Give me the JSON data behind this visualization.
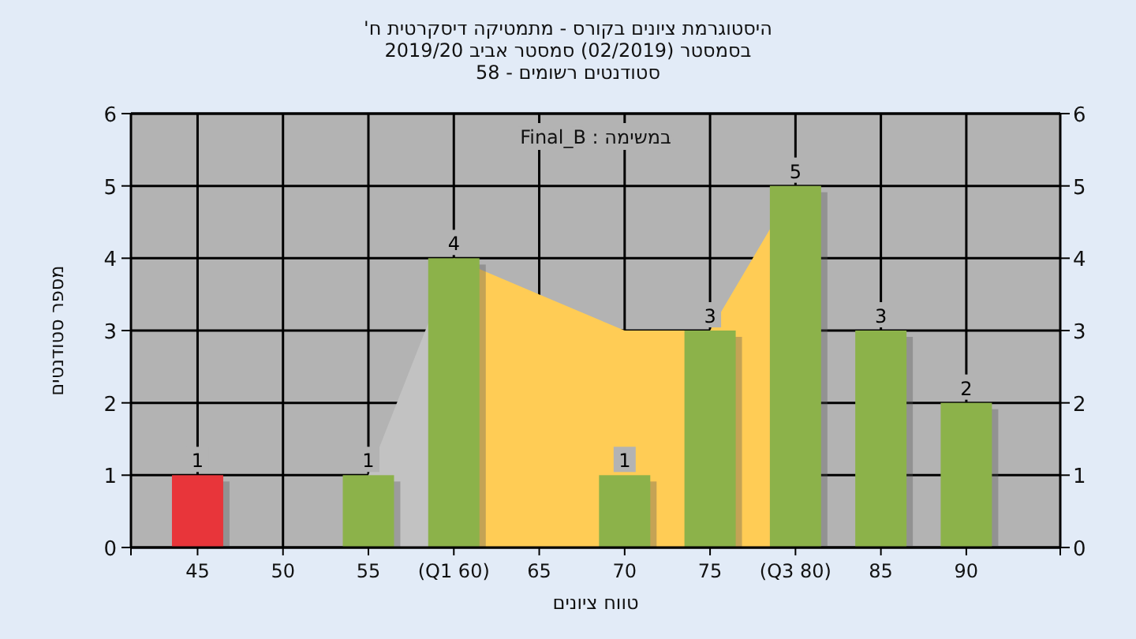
{
  "chart_data": {
    "type": "bar",
    "title": "היסטוגרמת ציונים בקורס - מתמטיקה דיסקרטית ח'",
    "subtitle": "בסמסטר  (02/2019)  סמסטר אביב 2019/20\nסטודנטים רשומים - 58",
    "xlabel": "טווח ציונים",
    "ylabel": "מספר סטודנטים",
    "annotations": [
      "Final_B : במשימה"
    ],
    "categories": [
      "45",
      "50",
      "55",
      "(Q1 60)",
      "65",
      "70",
      "75",
      "(Q3 80)",
      "85",
      "90"
    ],
    "series": [
      {
        "type": "area",
        "color": "#c2c2c2",
        "values": [
          null,
          null,
          1,
          4,
          null,
          null,
          null,
          null,
          null,
          null
        ]
      },
      {
        "type": "area",
        "color": "#ffcc55",
        "values": [
          null,
          null,
          null,
          4,
          3.5,
          3,
          3,
          5,
          null,
          null
        ]
      },
      {
        "type": "bar",
        "colors": [
          "#e8353a",
          "#8cb24a",
          "#8cb24a",
          "#8cb24a",
          "#8cb24a",
          "#8cb24a",
          "#8cb24a",
          "#8cb24a",
          "#8cb24a",
          "#8cb24a"
        ],
        "values": [
          1,
          0,
          1,
          4,
          0,
          1,
          3,
          5,
          3,
          2
        ],
        "value_labels": [
          "1",
          null,
          "1",
          "4",
          null,
          "1",
          "3",
          "5",
          "3",
          "2"
        ]
      }
    ],
    "ylim": [
      0,
      6
    ],
    "yticks": [
      0,
      1,
      2,
      3,
      4,
      5,
      6
    ],
    "y2lim": [
      0,
      6
    ],
    "y2ticks": [
      0,
      1,
      2,
      3,
      4,
      5,
      6
    ],
    "grid": true
  }
}
